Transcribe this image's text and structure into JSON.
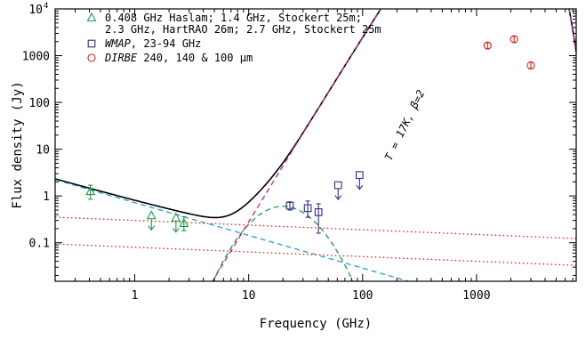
{
  "chart_data": {
    "type": "scatter",
    "xlabel": "Frequency (GHz)",
    "ylabel": "Flux density (Jy)",
    "xscale": "log",
    "yscale": "log",
    "xlim": [
      0.2,
      7500
    ],
    "ylim": [
      0.015,
      10000
    ],
    "x_ticks": [
      {
        "value": 1,
        "label": "1"
      },
      {
        "value": 10,
        "label": "10"
      },
      {
        "value": 100,
        "label": "100"
      },
      {
        "value": 1000,
        "label": "1000"
      }
    ],
    "y_ticks": [
      {
        "value": 0.1,
        "label": "0.1"
      },
      {
        "value": 1,
        "label": "1"
      },
      {
        "value": 10,
        "label": "10"
      },
      {
        "value": 100,
        "label": "100"
      },
      {
        "value": 1000,
        "label": "1000"
      },
      {
        "value": 10000,
        "label": "10",
        "exp": "4"
      }
    ],
    "legend": {
      "placement": "top-left",
      "entries": [
        {
          "marker": "triangle",
          "color": "#1a9a4a",
          "lines": [
            "0.408 GHz Haslam; 1.4 GHz, Stockert 25m;",
            "2.3 GHz, HartRAO 26m; 2.7 GHz, Stockert 25m"
          ]
        },
        {
          "marker": "square",
          "color": "#2b2f8f",
          "name_italic": "WMAP",
          "lines": [
            ",  23-94 GHz"
          ]
        },
        {
          "marker": "circle",
          "color": "#e0201b",
          "name_italic": "DIRBE",
          "lines": [
            " 240, 140 & 100 μm"
          ]
        }
      ]
    },
    "annotation": {
      "text": "T = 17K, β=2",
      "x": 250,
      "y": 30,
      "angle": -64
    },
    "series": [
      {
        "name": "0.408 GHz Haslam; 1.4 GHz, Stockert 25m; 2.3 GHz, HartRAO 26m; 2.7 GHz, Stockert 25m",
        "marker": "triangle",
        "color": "#1a9a4a",
        "points": [
          {
            "x": 0.408,
            "y": 1.25,
            "lo": 0.85,
            "hi": 1.7
          },
          {
            "x": 1.4,
            "y": 0.38,
            "upper_limit": true
          },
          {
            "x": 2.3,
            "y": 0.34,
            "upper_limit": true
          },
          {
            "x": 2.7,
            "y": 0.26,
            "lo": 0.18,
            "hi": 0.36
          }
        ]
      },
      {
        "name": "WMAP, 23-94 GHz",
        "marker": "square",
        "color": "#2b2f8f",
        "points": [
          {
            "x": 23,
            "y": 0.62,
            "lo": 0.5,
            "hi": 0.75
          },
          {
            "x": 33,
            "y": 0.55,
            "lo": 0.35,
            "hi": 0.78
          },
          {
            "x": 41,
            "y": 0.45,
            "lo": 0.16,
            "hi": 0.68
          },
          {
            "x": 61,
            "y": 1.7,
            "upper_limit": true
          },
          {
            "x": 94,
            "y": 2.8,
            "upper_limit": true
          }
        ]
      },
      {
        "name": "DIRBE 240, 140 & 100 μm",
        "marker": "circle",
        "color": "#e0201b",
        "points": [
          {
            "x": 1250,
            "y": 1650,
            "lo": 1400,
            "hi": 1900
          },
          {
            "x": 2140,
            "y": 2250,
            "lo": 1950,
            "hi": 2600
          },
          {
            "x": 3000,
            "y": 620,
            "lo": 520,
            "hi": 720
          }
        ]
      }
    ],
    "model_curves": [
      {
        "id": "total",
        "style": "solid",
        "color": "#000000"
      },
      {
        "id": "synchrotron",
        "style": "dashed",
        "color": "#1fa3c9"
      },
      {
        "id": "spinning-dust",
        "style": "dashed",
        "color": "#1a9a4a"
      },
      {
        "id": "thermal-dust",
        "style": "dashed",
        "color": "#c0208a"
      },
      {
        "id": "free-free",
        "style": "dotted",
        "color": "#e0201b"
      },
      {
        "id": "free-free-2",
        "style": "dotted",
        "color": "#e0201b"
      }
    ]
  }
}
